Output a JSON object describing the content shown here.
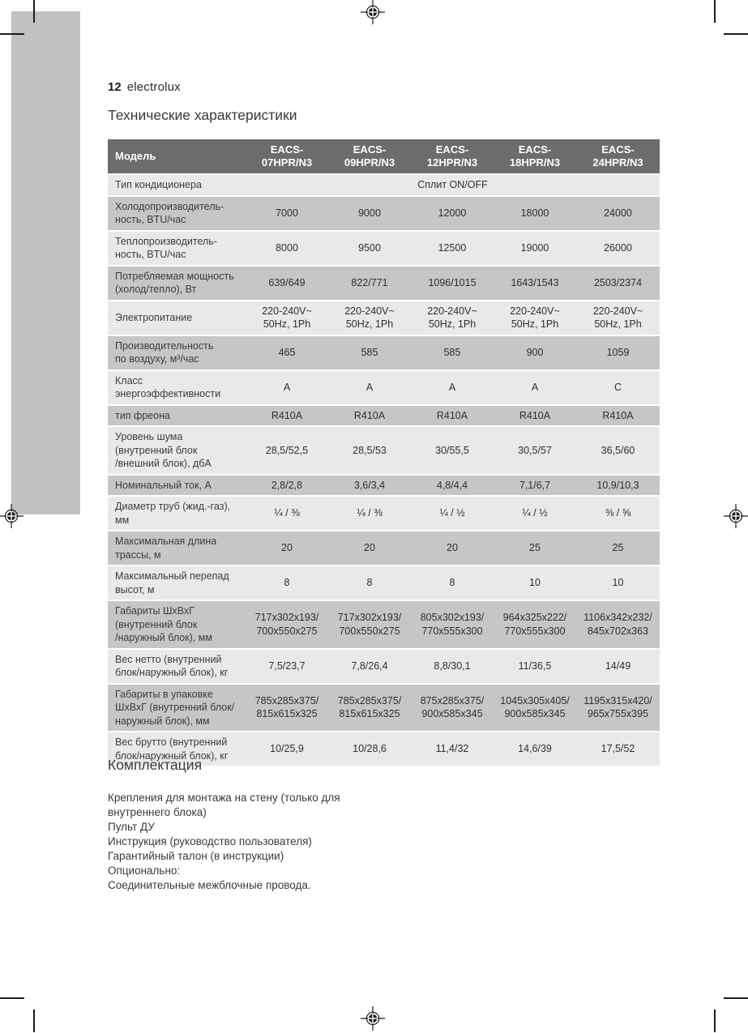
{
  "page": {
    "number": "12",
    "brand": "electrolux",
    "title": "Технические характеристики"
  },
  "colors": {
    "header_bg": "#6c6c6e",
    "row_light": "#e9e9ea",
    "row_dark": "#c6c6c8",
    "bar": "#c1c1c3",
    "text": "#3b3b3d"
  },
  "table": {
    "corner_label": "Модель",
    "models": [
      "EACS-\n07HPR/N3",
      "EACS-\n09HPR/N3",
      "EACS-\n12HPR/N3",
      "EACS-\n18HPR/N3",
      "EACS-\n24HPR/N3"
    ],
    "rows": [
      {
        "label": "Тип кондиционера",
        "merged": "Сплит ON/OFF",
        "shade": "light"
      },
      {
        "label": "Холодопроизводитель-\nность, BTU/час",
        "values": [
          "7000",
          "9000",
          "12000",
          "18000",
          "24000"
        ],
        "shade": "dark"
      },
      {
        "label": "Теплопроизводитель-\nность, BTU/час",
        "values": [
          "8000",
          "9500",
          "12500",
          "19000",
          "26000"
        ],
        "shade": "light"
      },
      {
        "label": "Потребляемая мощность\n(холод/тепло), Вт",
        "values": [
          "639/649",
          "822/771",
          "1096/1015",
          "1643/1543",
          "2503/2374"
        ],
        "shade": "dark"
      },
      {
        "label": "Электропитание",
        "values": [
          "220-240V~\n50Hz, 1Ph",
          "220-240V~\n50Hz, 1Ph",
          "220-240V~\n50Hz, 1Ph",
          "220-240V~\n50Hz, 1Ph",
          "220-240V~\n50Hz, 1Ph"
        ],
        "shade": "light"
      },
      {
        "label": "Производительность\nпо воздуху, м³/час",
        "values": [
          "465",
          "585",
          "585",
          "900",
          "1059"
        ],
        "shade": "dark"
      },
      {
        "label": "Класс\nэнергоэффективности",
        "values": [
          "A",
          "A",
          "A",
          "A",
          "C"
        ],
        "shade": "light"
      },
      {
        "label": "тип фреона",
        "values": [
          "R410A",
          "R410A",
          "R410A",
          "R410A",
          "R410A"
        ],
        "shade": "dark"
      },
      {
        "label": "Уровень шума\n(внутренний блок\n/внешний блок), дбА",
        "values": [
          "28,5/52,5",
          "28,5/53",
          "30/55,5",
          "30,5/57",
          "36,5/60"
        ],
        "shade": "light"
      },
      {
        "label": "Номинальный ток, А",
        "values": [
          "2,8/2,8",
          "3,6/3,4",
          "4,8/4,4",
          "7,1/6,7",
          "10,9/10,3"
        ],
        "shade": "dark"
      },
      {
        "label": "Диаметр труб (жид.-газ),\nмм",
        "values": [
          "¼ / ⅜",
          "¼ / ⅜",
          "¼ / ½",
          "¼ / ½",
          "⅜ / ⅝"
        ],
        "shade": "light"
      },
      {
        "label": "Максимальная длина\nтрассы, м",
        "values": [
          "20",
          "20",
          "20",
          "25",
          "25"
        ],
        "shade": "dark"
      },
      {
        "label": "Максимальный перепад\nвысот, м",
        "values": [
          "8",
          "8",
          "8",
          "10",
          "10"
        ],
        "shade": "light"
      },
      {
        "label": "Габариты ШхВхГ\n(внутренний блок\n/наружный блок), мм",
        "values": [
          "717x302x193/\n700x550x275",
          "717x302x193/\n700x550x275",
          "805x302x193/\n770x555x300",
          "964x325x222/\n770x555x300",
          "1106x342x232/\n845x702x363"
        ],
        "shade": "dark"
      },
      {
        "label": "Вес нетто (внутренний\nблок/наружный блок), кг",
        "values": [
          "7,5/23,7",
          "7,8/26,4",
          "8,8/30,1",
          "11/36,5",
          "14/49"
        ],
        "shade": "light"
      },
      {
        "label": "Габариты в упаковке\nШхВхГ (внутренний блок/\nнаружный блок), мм",
        "values": [
          "785x285x375/\n815x615x325",
          "785x285x375/\n815x615x325",
          "875x285x375/\n900x585x345",
          "1045x305x405/\n900x585x345",
          "1195x315x420/\n965x755x395"
        ],
        "shade": "dark"
      },
      {
        "label": "Вес брутто (внутренний\nблок/наружный блок), кг",
        "values": [
          "10/25,9",
          "10/28,6",
          "11,4/32",
          "14,6/39",
          "17,5/52"
        ],
        "shade": "light"
      }
    ]
  },
  "kit": {
    "title": "Комплектация",
    "items": [
      "Крепления для монтажа на стену (только для\nвнутреннего блока)",
      "Пульт ДУ",
      "Инструкция (руководство пользователя)",
      "Гарантийный талон (в инструкции)",
      "Опционально:",
      "Соединительные межблочные провода."
    ]
  }
}
